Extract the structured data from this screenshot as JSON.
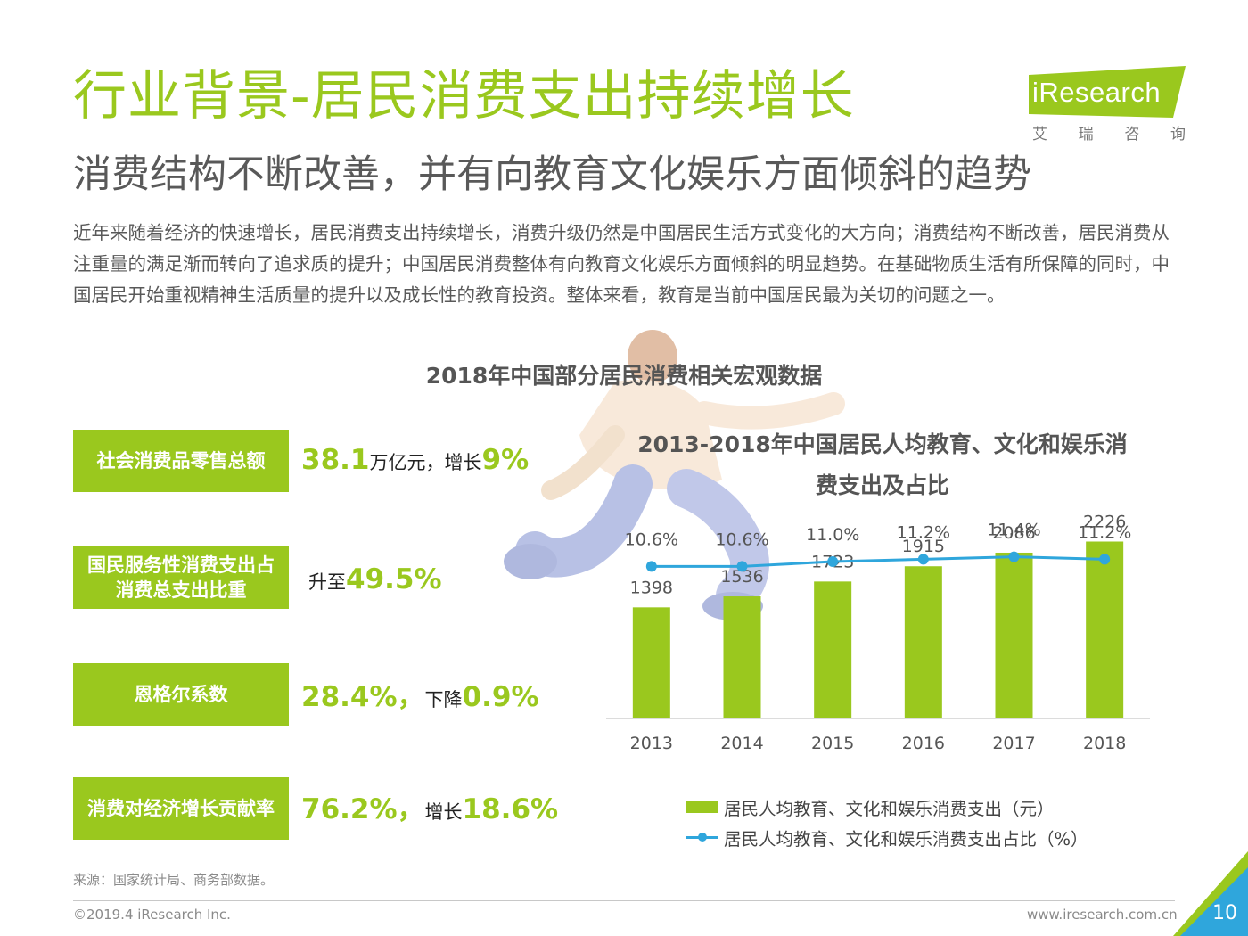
{
  "title": "行业背景-居民消费支出持续增长",
  "subtitle": "消费结构不断改善，并有向教育文化娱乐方面倾斜的趋势",
  "logo": {
    "brand": "iResearch",
    "cn": [
      "艾",
      "瑞",
      "咨",
      "询"
    ]
  },
  "intro": "近年来随着经济的快速增长，居民消费支出持续增长，消费升级仍然是中国居民生活方式变化的大方向；消费结构不断改善，居民消费从注重量的满足渐而转向了追求质的提升；中国居民消费整体有向教育文化娱乐方面倾斜的明显趋势。在基础物质生活有所保障的同时，中国居民开始重视精神生活质量的提升以及成长性的教育投资。整体来看，教育是当前中国居民最为关切的问题之一。",
  "section_title": "2018年中国部分居民消费相关宏观数据",
  "kpis": [
    {
      "label": "社会消费品零售总额",
      "v1": "38.1",
      "t1": "万亿元，增长",
      "v2": "9%",
      "t2": ""
    },
    {
      "label": "国民服务性消费支出占消费总支出比重",
      "v1": "",
      "t1": "升至",
      "v2": "49.5%",
      "t2": ""
    },
    {
      "label": "恩格尔系数",
      "v1": "28.4%，",
      "t1": "下降",
      "v2": "0.9%",
      "t2": ""
    },
    {
      "label": "消费对经济增长贡献率",
      "v1": "76.2%，",
      "t1": "增长",
      "v2": "18.6%",
      "t2": ""
    }
  ],
  "chart_data": {
    "type": "bar",
    "title": "2013-2018年中国居民人均教育、文化和娱乐消费支出及占比",
    "categories": [
      "2013",
      "2014",
      "2015",
      "2016",
      "2017",
      "2018"
    ],
    "series": [
      {
        "name": "居民人均教育、文化和娱乐消费支出（元）",
        "type": "bar",
        "values": [
          1398,
          1536,
          1723,
          1915,
          2086,
          2226
        ]
      },
      {
        "name": "居民人均教育、文化和娱乐消费支出占比（%）",
        "type": "line",
        "values": [
          10.6,
          10.6,
          11.0,
          11.2,
          11.4,
          11.2
        ]
      }
    ],
    "line_labels": [
      "10.6%",
      "10.6%",
      "11.0%",
      "11.2%",
      "11.4%",
      "11.2%"
    ],
    "colors": {
      "bar": "#9ac81e",
      "line": "#2fa6dc"
    },
    "legend": "bottom"
  },
  "source": "来源：国家统计局、商务部数据。",
  "copyright": "©2019.4 iResearch Inc.",
  "site": "www.iresearch.com.cn",
  "page": "10",
  "colors": {
    "accent": "#9ac81e",
    "line": "#2fa6dc"
  }
}
